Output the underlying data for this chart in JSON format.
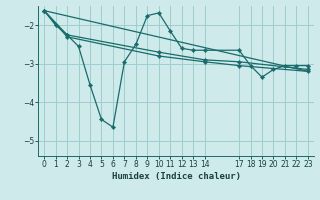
{
  "xlabel": "Humidex (Indice chaleur)",
  "bg_color": "#ceeaea",
  "grid_color": "#9fcece",
  "line_color": "#1a6b6b",
  "xlim": [
    -0.5,
    23.5
  ],
  "ylim": [
    -5.4,
    -1.5
  ],
  "yticks": [
    -5,
    -4,
    -3,
    -2
  ],
  "xticks": [
    0,
    1,
    2,
    3,
    4,
    5,
    6,
    7,
    8,
    9,
    10,
    11,
    12,
    13,
    14,
    17,
    18,
    19,
    20,
    21,
    22,
    23
  ],
  "series1_x": [
    0,
    1,
    2,
    3,
    4,
    5,
    6,
    7,
    8,
    9,
    10,
    11,
    12,
    13,
    14,
    17,
    18,
    19,
    20,
    21,
    22,
    23
  ],
  "series1_y": [
    -1.62,
    -2.0,
    -2.25,
    -2.55,
    -3.55,
    -4.45,
    -4.65,
    -2.95,
    -2.5,
    -1.75,
    -1.68,
    -2.15,
    -2.6,
    -2.65,
    -2.65,
    -2.65,
    -3.05,
    -3.35,
    -3.15,
    -3.05,
    -3.05,
    -3.05
  ],
  "series2_x": [
    0,
    2,
    10,
    14,
    17,
    23
  ],
  "series2_y": [
    -1.62,
    -2.25,
    -2.7,
    -2.9,
    -2.95,
    -3.15
  ],
  "series3_x": [
    0,
    2,
    10,
    14,
    17,
    23
  ],
  "series3_y": [
    -1.62,
    -2.3,
    -2.8,
    -2.95,
    -3.05,
    -3.2
  ],
  "series4_x": [
    0,
    23
  ],
  "series4_y": [
    -1.62,
    -3.2
  ]
}
